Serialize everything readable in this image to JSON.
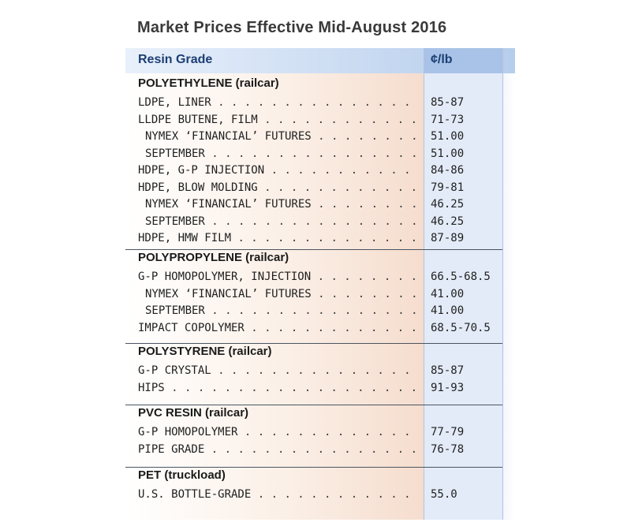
{
  "title": "Market Prices Effective Mid-August 2016",
  "header": {
    "grade": "Resin Grade",
    "unit": "¢/lb"
  },
  "groups": [
    {
      "title": "POLYETHYLENE (railcar)",
      "rows": [
        {
          "label": "LDPE, LINER",
          "value": "85-87",
          "indent": false
        },
        {
          "label": "LLDPE BUTENE, FILM",
          "value": "71-73",
          "indent": false
        },
        {
          "label": "NYMEX ‘FINANCIAL’ FUTURES",
          "value": "51.00",
          "indent": true
        },
        {
          "label": "SEPTEMBER",
          "value": "51.00",
          "indent": true
        },
        {
          "label": "HDPE, G-P INJECTION",
          "value": "84-86",
          "indent": false
        },
        {
          "label": "HDPE, BLOW MOLDING",
          "value": "79-81",
          "indent": false
        },
        {
          "label": "NYMEX ‘FINANCIAL’ FUTURES",
          "value": "46.25",
          "indent": true
        },
        {
          "label": "SEPTEMBER",
          "value": "46.25",
          "indent": true
        },
        {
          "label": "HDPE, HMW FILM",
          "value": "87-89",
          "indent": false
        }
      ]
    },
    {
      "title": "POLYPROPYLENE (railcar)",
      "rows": [
        {
          "label": "G-P HOMOPOLYMER, INJECTION",
          "value": "66.5-68.5",
          "indent": false
        },
        {
          "label": "NYMEX ‘FINANCIAL’ FUTURES",
          "value": "41.00",
          "indent": true
        },
        {
          "label": "SEPTEMBER",
          "value": "41.00",
          "indent": true
        },
        {
          "label": "IMPACT COPOLYMER",
          "value": "68.5-70.5",
          "indent": false
        }
      ]
    },
    {
      "title": "POLYSTYRENE (railcar)",
      "rows": [
        {
          "label": "G-P CRYSTAL",
          "value": "85-87",
          "indent": false
        },
        {
          "label": "HIPS",
          "value": "91-93",
          "indent": false
        }
      ]
    },
    {
      "title": "PVC RESIN (railcar)",
      "rows": [
        {
          "label": "G-P HOMOPOLYMER",
          "value": "77-79",
          "indent": false
        },
        {
          "label": "PIPE GRADE",
          "value": "76-78",
          "indent": false
        }
      ]
    },
    {
      "title": "PET (truckload)",
      "rows": [
        {
          "label": "U.S. BOTTLE-GRADE",
          "value": "55.0",
          "indent": false
        }
      ]
    }
  ]
}
